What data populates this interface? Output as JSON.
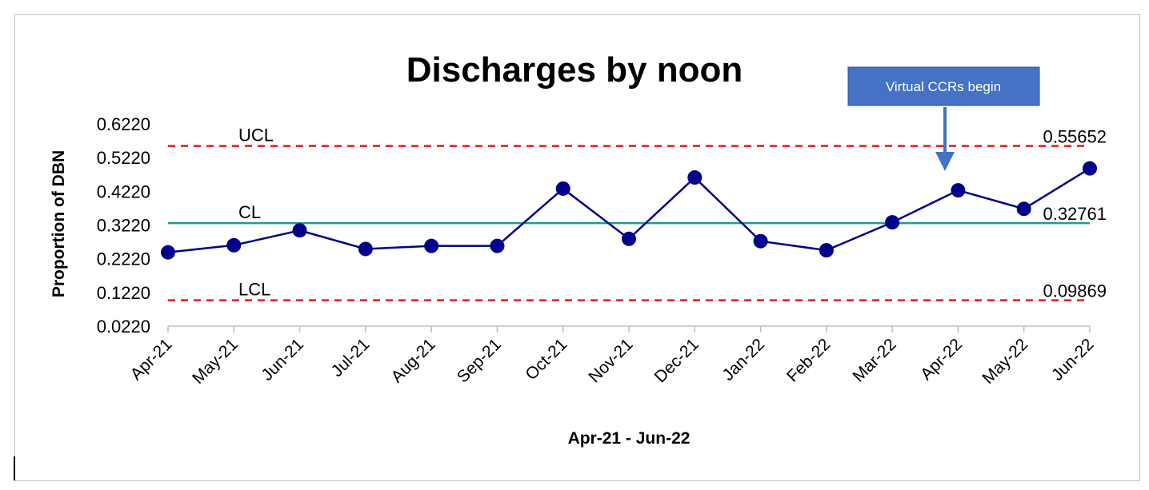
{
  "chart_data": {
    "type": "line",
    "title": "Discharges by noon",
    "xlabel": "Apr-21 - Jun-22",
    "ylabel": "Proportion of DBN",
    "categories": [
      "Apr-21",
      "May-21",
      "Jun-21",
      "Jul-21",
      "Aug-21",
      "Sep-21",
      "Oct-21",
      "Nov-21",
      "Dec-21",
      "Jan-22",
      "Feb-22",
      "Mar-22",
      "Apr-22",
      "May-22",
      "Jun-22"
    ],
    "series": [
      {
        "values": [
          0.241,
          0.262,
          0.306,
          0.251,
          0.26,
          0.26,
          0.43,
          0.281,
          0.463,
          0.274,
          0.247,
          0.33,
          0.425,
          0.37,
          0.49
        ],
        "color": "#00008b"
      }
    ],
    "ylim": [
      0.022,
      0.622
    ],
    "yticks": [
      "0.6220",
      "0.5220",
      "0.4220",
      "0.3220",
      "0.2220",
      "0.1220",
      "0.0220"
    ],
    "control_lines": {
      "ucl": {
        "label": "UCL",
        "value": 0.55652,
        "value_text": "0.55652",
        "color": "#e41a1c",
        "style": "dashed"
      },
      "cl": {
        "label": "CL",
        "value": 0.32761,
        "value_text": "0.32761",
        "color": "#1a9e8f",
        "style": "solid"
      },
      "lcl": {
        "label": "LCL",
        "value": 0.09869,
        "value_text": "0.09869",
        "color": "#e41a1c",
        "style": "dashed"
      }
    },
    "annotation": {
      "text": "Virtual CCRs begin",
      "points_to": "Apr-22",
      "fill": "#4472c4"
    },
    "grid": false,
    "legend": "none"
  }
}
